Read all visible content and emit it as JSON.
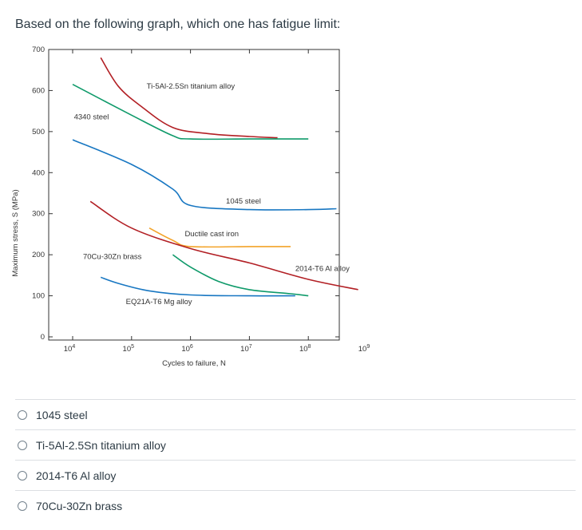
{
  "question": {
    "text": "Based on the following graph, which one has fatigue limit:"
  },
  "chart_data": {
    "type": "line",
    "xlabel": "Cycles to failure, N",
    "ylabel": "Maximum stress, S (MPa)",
    "x_scale": "log",
    "xlim": [
      10000,
      1000000000
    ],
    "ylim": [
      0,
      700
    ],
    "x_ticks": [
      {
        "value": 10000,
        "base": "10",
        "exp": "4"
      },
      {
        "value": 100000,
        "base": "10",
        "exp": "5"
      },
      {
        "value": 1000000,
        "base": "10",
        "exp": "6"
      },
      {
        "value": 10000000,
        "base": "10",
        "exp": "7"
      },
      {
        "value": 100000000,
        "base": "10",
        "exp": "8"
      },
      {
        "value": 1000000000,
        "base": "10",
        "exp": "9"
      }
    ],
    "y_ticks": [
      "0",
      "100",
      "200",
      "300",
      "400",
      "500",
      "600",
      "700"
    ],
    "grid": false,
    "series": [
      {
        "name": "Ti-5Al-2.5Sn titanium alloy",
        "color": "#b21f24",
        "x": [
          30000,
          60000,
          150000,
          500000,
          2000000,
          10000000,
          30000000
        ],
        "y": [
          680,
          610,
          560,
          510,
          495,
          488,
          485
        ],
        "label_x": 180000,
        "label_y": 605
      },
      {
        "name": "4340 steel",
        "color": "#0f9a6a",
        "x": [
          10000,
          100000,
          500000,
          1000000,
          10000000,
          100000000
        ],
        "y": [
          615,
          540,
          490,
          482,
          482,
          482
        ],
        "label_x": 10500,
        "label_y": 530
      },
      {
        "name": "1045 steel",
        "color": "#1877c2",
        "x": [
          10000,
          100000,
          500000,
          1000000,
          10000000,
          100000000,
          300000000
        ],
        "y": [
          480,
          420,
          360,
          320,
          310,
          310,
          312
        ],
        "label_x": 4000000,
        "label_y": 325
      },
      {
        "name": "Ductile cast iron",
        "color": "#f3a328",
        "x": [
          200000,
          500000,
          1000000,
          10000000,
          30000000,
          50000000
        ],
        "y": [
          265,
          235,
          220,
          220,
          220,
          220
        ],
        "label_x": 800000,
        "label_y": 245
      },
      {
        "name": "2014-T6 Al alloy",
        "color": "#b21f24",
        "x": [
          20000,
          100000,
          1000000,
          10000000,
          100000000,
          700000000
        ],
        "y": [
          330,
          265,
          215,
          180,
          140,
          115
        ],
        "label_x": 60000000,
        "label_y": 160
      },
      {
        "name": "70Cu-30Zn brass",
        "color": "#0f9a6a",
        "x": [
          500000,
          1000000,
          3000000,
          10000000,
          50000000,
          100000000
        ],
        "y": [
          200,
          170,
          135,
          115,
          105,
          100
        ],
        "label_x": 15000,
        "label_y": 190
      },
      {
        "name": "EQ21A-T6 Mg alloy",
        "color": "#1877c2",
        "x": [
          30000,
          60000,
          200000,
          1000000,
          10000000,
          60000000
        ],
        "y": [
          145,
          130,
          112,
          102,
          100,
          100
        ],
        "label_x": 80000,
        "label_y": 80
      }
    ]
  },
  "options": [
    {
      "label": "1045 steel"
    },
    {
      "label": "Ti-5Al-2.5Sn titanium alloy"
    },
    {
      "label": "2014-T6 Al alloy"
    },
    {
      "label": "70Cu-30Zn brass"
    }
  ]
}
